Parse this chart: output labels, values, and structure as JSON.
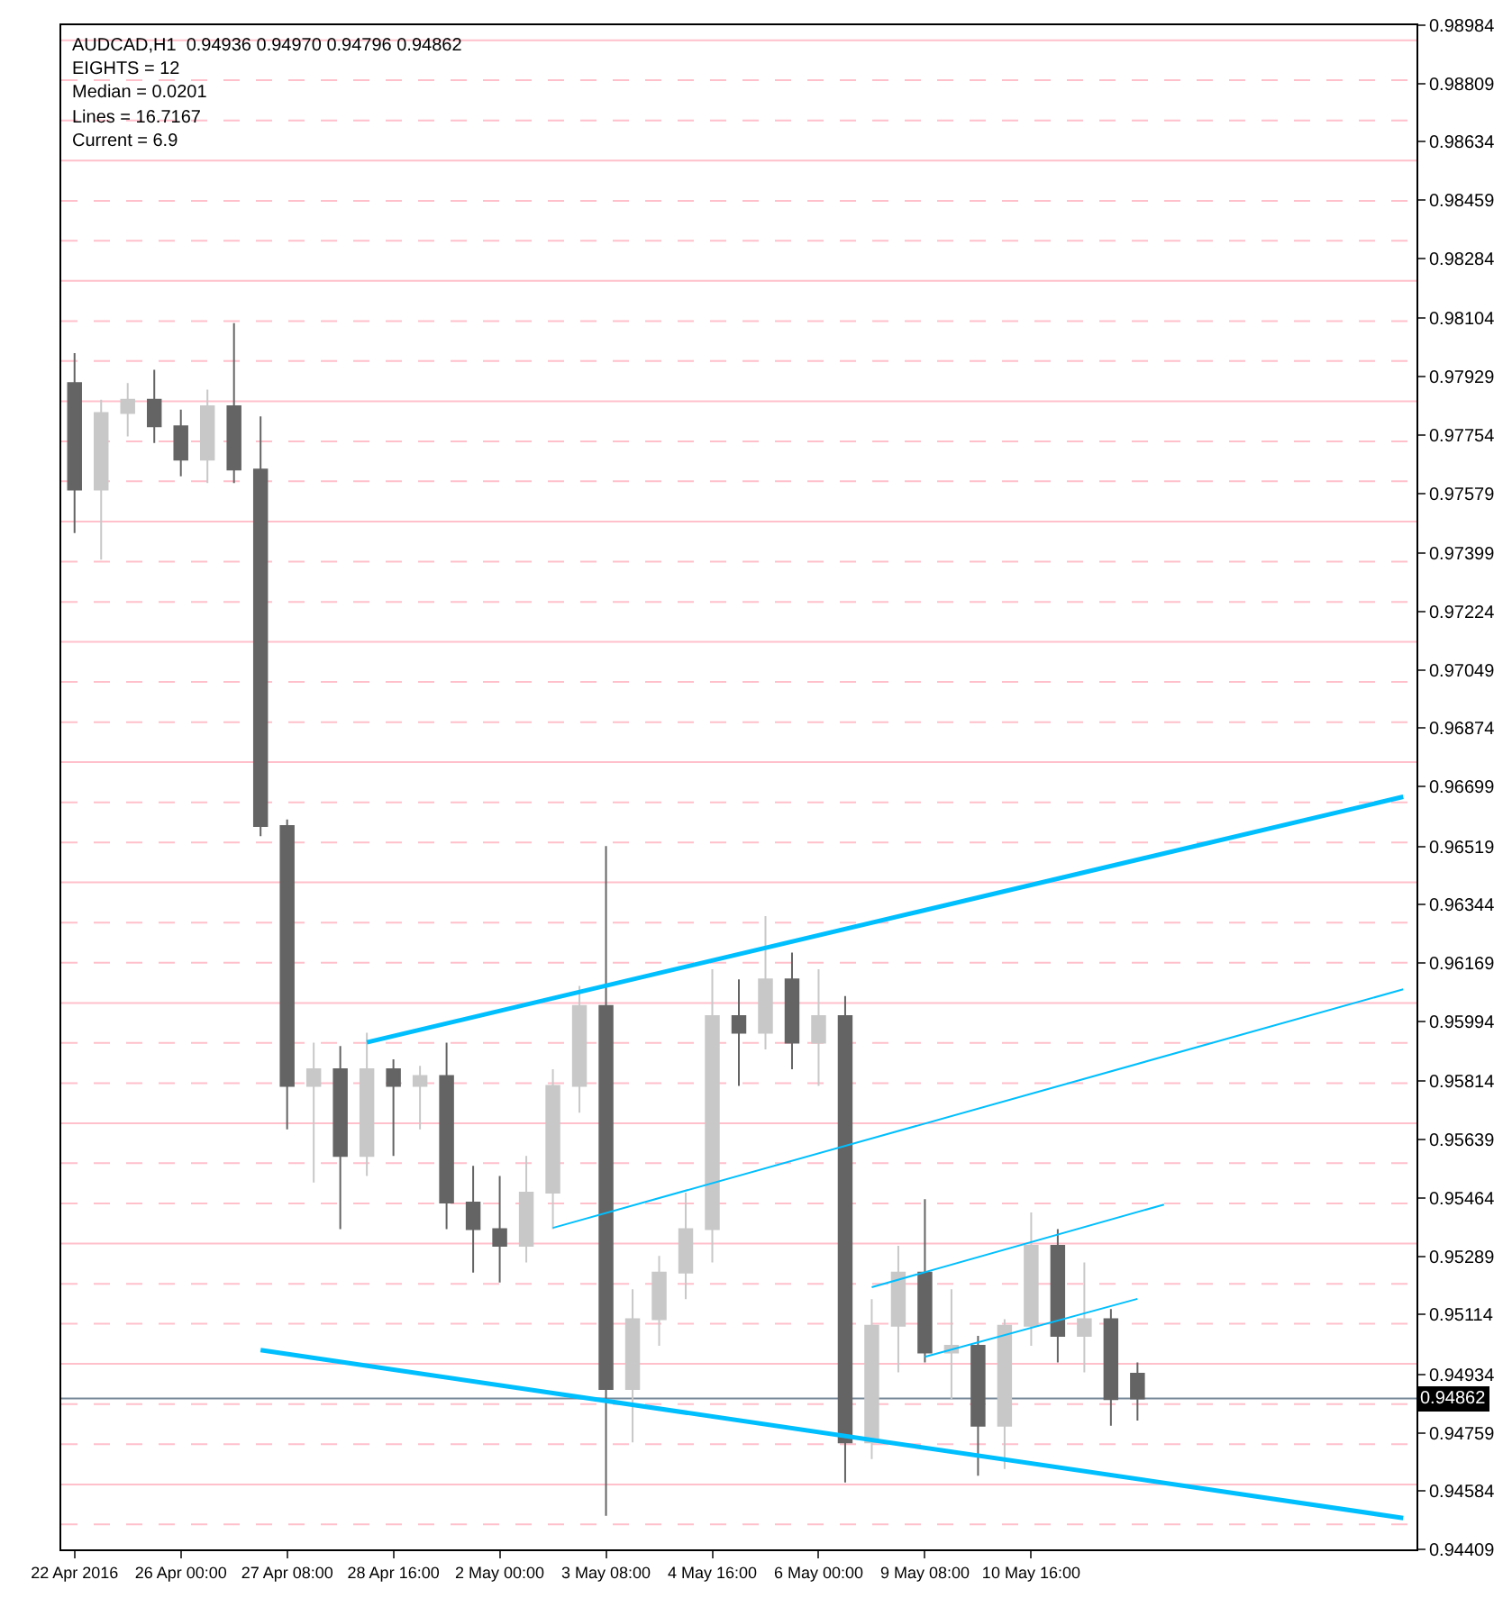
{
  "chart_data": {
    "type": "candlestick",
    "annotations": [
      "AUDCAD,H1  0.94936 0.94970 0.94796 0.94862",
      "EIGHTS = 12",
      "Median = 0.0201",
      "Lines = 16.7167",
      "Current = 6.9"
    ],
    "categories": [
      "22 Apr 2016",
      null,
      null,
      null,
      "26 Apr 00:00",
      null,
      null,
      null,
      "27 Apr 08:00",
      null,
      null,
      null,
      "28 Apr 16:00",
      null,
      null,
      null,
      "2 May 00:00",
      null,
      null,
      null,
      "3 May 08:00",
      null,
      null,
      null,
      "4 May 16:00",
      null,
      null,
      null,
      "6 May 00:00",
      null,
      null,
      null,
      "9 May 08:00",
      null,
      null,
      null,
      "10 May 16:00",
      null,
      null,
      null,
      null,
      null,
      null,
      null,
      null,
      null,
      null,
      null,
      null,
      null,
      null
    ],
    "ohlc": [
      [
        0.9791,
        0.98,
        0.9746,
        0.9759
      ],
      [
        0.9759,
        0.9786,
        0.9738,
        0.9782
      ],
      [
        0.9782,
        0.9791,
        0.9775,
        0.9786
      ],
      [
        0.9786,
        0.9795,
        0.9773,
        0.9778
      ],
      [
        0.9778,
        0.9783,
        0.9763,
        0.9768
      ],
      [
        0.9768,
        0.9789,
        0.9761,
        0.9784
      ],
      [
        0.9784,
        0.9809,
        0.9761,
        0.9765
      ],
      [
        0.9765,
        0.9781,
        0.9655,
        0.9658
      ],
      [
        0.9658,
        0.966,
        0.9567,
        0.958
      ],
      [
        0.958,
        0.9593,
        0.9551,
        0.9585
      ],
      [
        0.9585,
        0.9592,
        0.9537,
        0.9559
      ],
      [
        0.9559,
        0.9596,
        0.9553,
        0.9585
      ],
      [
        0.9585,
        0.9588,
        0.9559,
        0.958
      ],
      [
        0.958,
        0.9586,
        0.9567,
        0.9583
      ],
      [
        0.9583,
        0.9593,
        0.9537,
        0.9545
      ],
      [
        0.9545,
        0.9556,
        0.9524,
        0.9537
      ],
      [
        0.9537,
        0.9553,
        0.9521,
        0.9532
      ],
      [
        0.9532,
        0.9559,
        0.9527,
        0.9548
      ],
      [
        0.9548,
        0.9585,
        0.9537,
        0.958
      ],
      [
        0.958,
        0.961,
        0.9572,
        0.9604
      ],
      [
        0.9604,
        0.9652,
        0.9451,
        0.9489
      ],
      [
        0.9489,
        0.9519,
        0.9473,
        0.951
      ],
      [
        0.951,
        0.9529,
        0.9502,
        0.9524
      ],
      [
        0.9524,
        0.9548,
        0.9516,
        0.9537
      ],
      [
        0.9537,
        0.9615,
        0.9527,
        0.9601
      ],
      [
        0.9601,
        0.9612,
        0.958,
        0.9596
      ],
      [
        0.9596,
        0.9631,
        0.9591,
        0.9612
      ],
      [
        0.9612,
        0.962,
        0.9585,
        0.9593
      ],
      [
        0.9593,
        0.9615,
        0.958,
        0.9601
      ],
      [
        0.9601,
        0.9607,
        0.9461,
        0.9473
      ],
      [
        0.9473,
        0.9516,
        0.9468,
        0.9508
      ],
      [
        0.9508,
        0.9532,
        0.9494,
        0.9524
      ],
      [
        0.9524,
        0.9546,
        0.9497,
        0.95
      ],
      [
        0.95,
        0.9519,
        0.9486,
        0.9502
      ],
      [
        0.9502,
        0.9505,
        0.9463,
        0.9478
      ],
      [
        0.9478,
        0.951,
        0.9465,
        0.9508
      ],
      [
        0.9508,
        0.9542,
        0.9502,
        0.9532
      ],
      [
        0.9532,
        0.9537,
        0.9497,
        0.9505
      ],
      [
        0.9505,
        0.9527,
        0.9494,
        0.951
      ],
      [
        0.951,
        0.9513,
        0.9478,
        0.9486
      ],
      [
        0.94936,
        0.9497,
        0.94796,
        0.94862
      ],
      null,
      null,
      null,
      null,
      null,
      null,
      null,
      null,
      null,
      null
    ],
    "colors": [
      "#646464",
      "#c8c8c8",
      "#c8c8c8",
      "#646464",
      "#646464",
      "#c8c8c8",
      "#646464",
      "#646464",
      "#646464",
      "#c8c8c8",
      "#646464",
      "#c8c8c8",
      "#646464",
      "#c8c8c8",
      "#646464",
      "#646464",
      "#646464",
      "#c8c8c8",
      "#c8c8c8",
      "#c8c8c8",
      "#646464",
      "#c8c8c8",
      "#c8c8c8",
      "#c8c8c8",
      "#c8c8c8",
      "#646464",
      "#c8c8c8",
      "#646464",
      "#c8c8c8",
      "#646464",
      "#c8c8c8",
      "#c8c8c8",
      "#646464",
      "#c8c8c8",
      "#646464",
      "#c8c8c8",
      "#c8c8c8",
      "#646464",
      "#c8c8c8",
      "#646464",
      "#646464",
      null,
      null,
      null,
      null,
      null,
      null,
      null,
      null,
      null,
      null
    ],
    "series": [
      {
        "type": "line",
        "color": "#00bfff",
        "values": [
          null,
          null,
          null,
          null,
          null,
          null,
          null,
          null,
          null,
          null,
          null,
          0.95931,
          null,
          null,
          null,
          null,
          null,
          null,
          null,
          null,
          null,
          null,
          null,
          null,
          null,
          null,
          null,
          null,
          null,
          null,
          null,
          null,
          null,
          null,
          null,
          null,
          null,
          null,
          null,
          null,
          null,
          null,
          null,
          null,
          null,
          null,
          null,
          null,
          null,
          null,
          0.96668
        ]
      },
      {
        "type": "line",
        "color": "#00bfff",
        "values": [
          null,
          null,
          null,
          null,
          null,
          null,
          null,
          0.95007,
          null,
          null,
          null,
          null,
          null,
          null,
          null,
          null,
          null,
          null,
          null,
          null,
          null,
          null,
          null,
          null,
          null,
          null,
          null,
          null,
          null,
          null,
          null,
          null,
          null,
          null,
          null,
          null,
          null,
          null,
          null,
          null,
          null,
          null,
          null,
          null,
          null,
          null,
          null,
          null,
          null,
          null,
          0.94503
        ]
      },
      {
        "type": "line",
        "color": "#00bfff",
        "values": [
          null,
          null,
          null,
          null,
          null,
          null,
          null,
          null,
          null,
          null,
          null,
          null,
          null,
          null,
          null,
          null,
          null,
          null,
          0.95374,
          null,
          null,
          null,
          null,
          null,
          null,
          null,
          null,
          null,
          null,
          null,
          null,
          null,
          null,
          null,
          null,
          null,
          null,
          null,
          null,
          null,
          null,
          null,
          null,
          null,
          null,
          null,
          null,
          null,
          null,
          null,
          0.9609
        ]
      },
      {
        "type": "line",
        "color": "#00bfff",
        "values": [
          null,
          null,
          null,
          null,
          null,
          null,
          null,
          null,
          null,
          null,
          null,
          null,
          null,
          null,
          null,
          null,
          null,
          null,
          null,
          null,
          null,
          null,
          null,
          null,
          null,
          null,
          null,
          null,
          null,
          null,
          0.95196,
          null,
          null,
          null,
          null,
          null,
          null,
          null,
          null,
          null,
          null,
          0.95444,
          null,
          null,
          null,
          null,
          null,
          null,
          null,
          null,
          null
        ]
      },
      {
        "type": "line",
        "color": "#00bfff",
        "values": [
          null,
          null,
          null,
          null,
          null,
          null,
          null,
          null,
          null,
          null,
          null,
          null,
          null,
          null,
          null,
          null,
          null,
          null,
          null,
          null,
          null,
          null,
          null,
          null,
          null,
          null,
          null,
          null,
          null,
          null,
          null,
          null,
          0.94987,
          null,
          null,
          null,
          null,
          null,
          null,
          null,
          0.95161,
          null,
          null,
          null,
          null,
          null,
          null,
          null,
          null,
          null,
          null
        ]
      }
    ],
    "marker": "none",
    "line_style": "solid",
    "grid": false,
    "ylim": [
      0.94409,
      0.98984
    ],
    "yticks": [
      0.98984,
      0.98809,
      0.98634,
      0.98459,
      0.98284,
      0.98104,
      0.97929,
      0.97754,
      0.97579,
      0.97399,
      0.97224,
      0.97049,
      0.96874,
      0.96699,
      0.96519,
      0.96344,
      0.96169,
      0.95994,
      0.95814,
      0.95639,
      0.95464,
      0.95289,
      0.95114,
      0.94934,
      0.94759,
      0.94584,
      0.94409
    ],
    "ref_lines": [
      {
        "axis": "y",
        "value": 0.98939,
        "color": "#ffc0cb",
        "line_style": "solid"
      },
      {
        "axis": "y",
        "value": 0.98819,
        "color": "#ffc0cb",
        "line_style": "dashed"
      },
      {
        "axis": "y",
        "value": 0.98698,
        "color": "#ffc0cb",
        "line_style": "dashed"
      },
      {
        "axis": "y",
        "value": 0.98578,
        "color": "#ffc0cb",
        "line_style": "solid"
      },
      {
        "axis": "y",
        "value": 0.98457,
        "color": "#ffc0cb",
        "line_style": "dashed"
      },
      {
        "axis": "y",
        "value": 0.98337,
        "color": "#ffc0cb",
        "line_style": "dashed"
      },
      {
        "axis": "y",
        "value": 0.98217,
        "color": "#ffc0cb",
        "line_style": "solid"
      },
      {
        "axis": "y",
        "value": 0.98096,
        "color": "#ffc0cb",
        "line_style": "dashed"
      },
      {
        "axis": "y",
        "value": 0.97976,
        "color": "#ffc0cb",
        "line_style": "dashed"
      },
      {
        "axis": "y",
        "value": 0.97855,
        "color": "#ffc0cb",
        "line_style": "solid"
      },
      {
        "axis": "y",
        "value": 0.97735,
        "color": "#ffc0cb",
        "line_style": "dashed"
      },
      {
        "axis": "y",
        "value": 0.97615,
        "color": "#ffc0cb",
        "line_style": "dashed"
      },
      {
        "axis": "y",
        "value": 0.97494,
        "color": "#ffc0cb",
        "line_style": "solid"
      },
      {
        "axis": "y",
        "value": 0.97374,
        "color": "#ffc0cb",
        "line_style": "dashed"
      },
      {
        "axis": "y",
        "value": 0.97253,
        "color": "#ffc0cb",
        "line_style": "dashed"
      },
      {
        "axis": "y",
        "value": 0.97133,
        "color": "#ffc0cb",
        "line_style": "solid"
      },
      {
        "axis": "y",
        "value": 0.97013,
        "color": "#ffc0cb",
        "line_style": "dashed"
      },
      {
        "axis": "y",
        "value": 0.96892,
        "color": "#ffc0cb",
        "line_style": "dashed"
      },
      {
        "axis": "y",
        "value": 0.96772,
        "color": "#ffc0cb",
        "line_style": "solid"
      },
      {
        "axis": "y",
        "value": 0.96651,
        "color": "#ffc0cb",
        "line_style": "dashed"
      },
      {
        "axis": "y",
        "value": 0.96531,
        "color": "#ffc0cb",
        "line_style": "dashed"
      },
      {
        "axis": "y",
        "value": 0.96411,
        "color": "#ffc0cb",
        "line_style": "solid"
      },
      {
        "axis": "y",
        "value": 0.9629,
        "color": "#ffc0cb",
        "line_style": "dashed"
      },
      {
        "axis": "y",
        "value": 0.9617,
        "color": "#ffc0cb",
        "line_style": "dashed"
      },
      {
        "axis": "y",
        "value": 0.96049,
        "color": "#ffc0cb",
        "line_style": "solid"
      },
      {
        "axis": "y",
        "value": 0.95929,
        "color": "#ffc0cb",
        "line_style": "dashed"
      },
      {
        "axis": "y",
        "value": 0.95808,
        "color": "#ffc0cb",
        "line_style": "dashed"
      },
      {
        "axis": "y",
        "value": 0.95688,
        "color": "#ffc0cb",
        "line_style": "solid"
      },
      {
        "axis": "y",
        "value": 0.95568,
        "color": "#ffc0cb",
        "line_style": "dashed"
      },
      {
        "axis": "y",
        "value": 0.95447,
        "color": "#ffc0cb",
        "line_style": "dashed"
      },
      {
        "axis": "y",
        "value": 0.95327,
        "color": "#ffc0cb",
        "line_style": "solid"
      },
      {
        "axis": "y",
        "value": 0.95206,
        "color": "#ffc0cb",
        "line_style": "dashed"
      },
      {
        "axis": "y",
        "value": 0.95086,
        "color": "#ffc0cb",
        "line_style": "dashed"
      },
      {
        "axis": "y",
        "value": 0.94966,
        "color": "#ffc0cb",
        "line_style": "solid"
      },
      {
        "axis": "y",
        "value": 0.94845,
        "color": "#ffc0cb",
        "line_style": "dashed"
      },
      {
        "axis": "y",
        "value": 0.94725,
        "color": "#ffc0cb",
        "line_style": "dashed"
      },
      {
        "axis": "y",
        "value": 0.94604,
        "color": "#ffc0cb",
        "line_style": "solid"
      },
      {
        "axis": "y",
        "value": 0.94484,
        "color": "#ffc0cb",
        "line_style": "dashed"
      },
      {
        "axis": "y",
        "value": 0.94862,
        "label": "0.94862",
        "color": "#778899",
        "line_style": "solid"
      }
    ]
  }
}
